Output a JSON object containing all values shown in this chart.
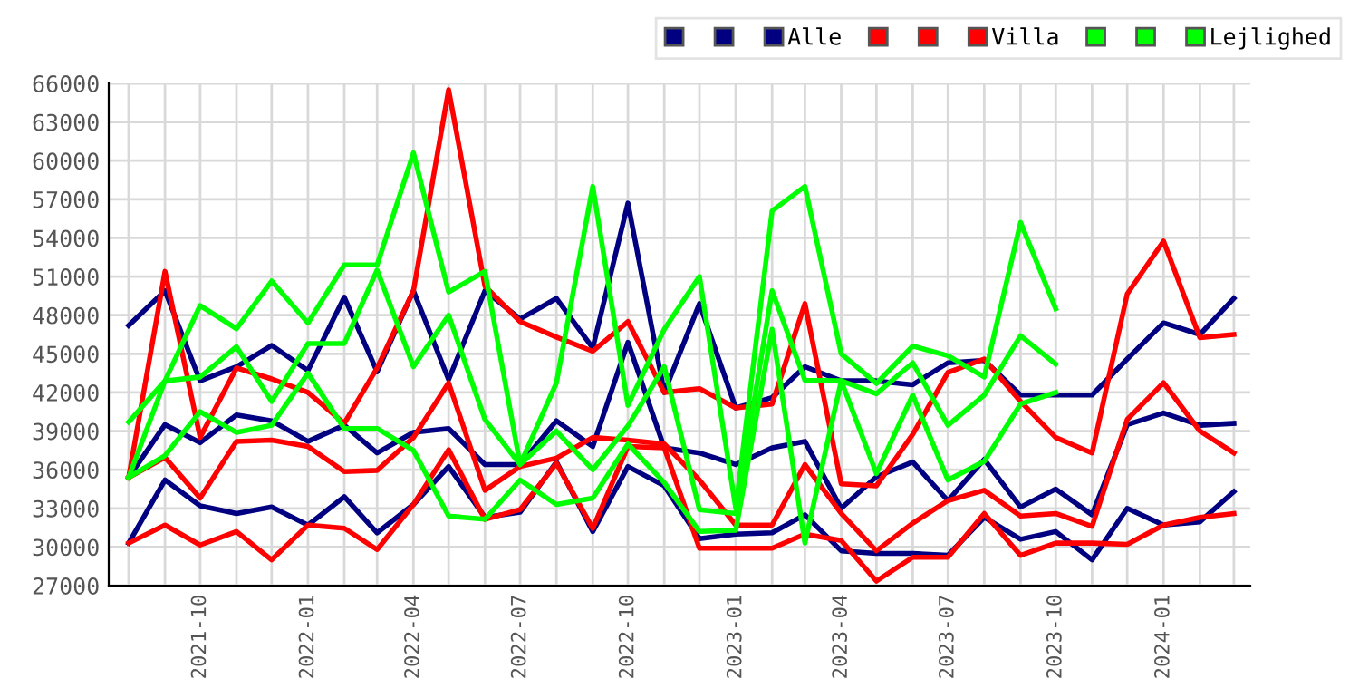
{
  "chart_data": {
    "type": "line",
    "x": [
      "2021-08",
      "2021-09",
      "2021-10",
      "2021-11",
      "2021-12",
      "2022-01",
      "2022-02",
      "2022-03",
      "2022-04",
      "2022-05",
      "2022-06",
      "2022-07",
      "2022-08",
      "2022-09",
      "2022-10",
      "2022-11",
      "2022-12",
      "2023-01",
      "2023-02",
      "2023-03",
      "2023-04",
      "2023-05",
      "2023-06",
      "2023-07",
      "2023-08",
      "2023-09",
      "2023-10",
      "2023-11",
      "2023-12",
      "2024-01",
      "2024-02",
      "2024-03"
    ],
    "series": [
      {
        "color": "#000080",
        "values": [
          30300,
          35200,
          33200,
          32600,
          33100,
          31700,
          33900,
          31100,
          33300,
          36250,
          32300,
          32700,
          36600,
          31200,
          36250,
          34750,
          30650,
          31000,
          31100,
          32500,
          29700,
          29500,
          29500,
          29350,
          32300,
          30600,
          31200,
          29000,
          33000,
          31700,
          31950,
          34300
        ]
      },
      {
        "color": "#000080",
        "values": [
          35400,
          39500,
          38100,
          40250,
          39800,
          38200,
          39450,
          37300,
          38900,
          39200,
          36400,
          36400,
          39800,
          37800,
          45900,
          37700,
          37300,
          36400,
          37700,
          38200,
          33000,
          35450,
          36600,
          33600,
          36800,
          33100,
          34500,
          32500,
          39500,
          40400,
          39450,
          39600
        ]
      },
      {
        "name": "Alle",
        "color": "#000080",
        "values": [
          47200,
          49900,
          42900,
          44000,
          45650,
          43700,
          49400,
          43600,
          49900,
          43000,
          49900,
          47700,
          49300,
          45450,
          56700,
          42000,
          48900,
          40800,
          41600,
          44000,
          42900,
          42900,
          42600,
          44300,
          44500,
          41800,
          41800,
          41800,
          44600,
          47400,
          46500,
          49300
        ]
      },
      {
        "color": "#ff0000",
        "values": [
          30300,
          31700,
          30150,
          31200,
          29000,
          31700,
          31450,
          29800,
          33300,
          37550,
          32150,
          32900,
          36500,
          31450,
          37800,
          37700,
          29900,
          29900,
          29900,
          31000,
          30500,
          27350,
          29200,
          29200,
          32600,
          29350,
          30300,
          30300,
          30200,
          31700,
          32300,
          32600
        ]
      },
      {
        "color": "#ff0000",
        "values": [
          35400,
          36950,
          33800,
          38200,
          38300,
          37800,
          35850,
          35950,
          38500,
          42750,
          34400,
          36250,
          36900,
          38500,
          38300,
          38000,
          35200,
          31700,
          31700,
          36400,
          32600,
          29700,
          31850,
          33600,
          34400,
          32400,
          32600,
          31600,
          39900,
          42750,
          39000,
          37300
        ]
      },
      {
        "name": "Villa",
        "color": "#ff0000",
        "values": [
          35400,
          51400,
          38500,
          43900,
          43050,
          42000,
          39600,
          43900,
          49900,
          65500,
          50250,
          47500,
          46300,
          45200,
          47500,
          42000,
          42300,
          40800,
          41100,
          48900,
          34900,
          34750,
          38750,
          43550,
          44600,
          41300,
          38500,
          37300,
          49650,
          53750,
          46250,
          46500
        ]
      },
      {
        "color": "#00ff00",
        "values": [
          35400,
          37100,
          40500,
          38900,
          39450,
          43500,
          39200,
          39200,
          37500,
          32400,
          32150,
          35200,
          33300,
          33800,
          38000,
          35000,
          31200,
          31300,
          46900,
          30300,
          42900,
          35700,
          41800,
          35200,
          36650,
          41100,
          42000,
          null,
          null,
          null,
          null,
          null
        ]
      },
      {
        "color": "#00ff00",
        "values": [
          35400,
          42900,
          43200,
          45550,
          41300,
          45800,
          45800,
          51500,
          44000,
          48000,
          39900,
          36400,
          39000,
          36000,
          39400,
          44000,
          32900,
          32600,
          49900,
          42950,
          42900,
          41900,
          44300,
          39450,
          41800,
          46400,
          44200,
          null,
          null,
          null,
          null,
          null
        ]
      },
      {
        "name": "Lejlighed",
        "color": "#00ff00",
        "values": [
          39700,
          42900,
          48750,
          46950,
          50650,
          47400,
          51900,
          51900,
          60600,
          49800,
          51400,
          36400,
          42750,
          58000,
          41000,
          46900,
          51000,
          33000,
          56100,
          58000,
          45000,
          42700,
          45600,
          44850,
          43200,
          55200,
          48500,
          null,
          null,
          null,
          null,
          null
        ]
      }
    ],
    "xlim": [
      "2021-07-15",
      "2024-03-15"
    ],
    "xticks": [
      {
        "value": "2021-08",
        "label": null
      },
      {
        "value": "2021-09",
        "label": null
      },
      {
        "value": "2021-10",
        "label": "2021-10"
      },
      {
        "value": "2021-11",
        "label": null
      },
      {
        "value": "2021-12",
        "label": null
      },
      {
        "value": "2022-01",
        "label": "2022-01"
      },
      {
        "value": "2022-02",
        "label": null
      },
      {
        "value": "2022-03",
        "label": null
      },
      {
        "value": "2022-04",
        "label": "2022-04"
      },
      {
        "value": "2022-05",
        "label": null
      },
      {
        "value": "2022-06",
        "label": null
      },
      {
        "value": "2022-07",
        "label": "2022-07"
      },
      {
        "value": "2022-08",
        "label": null
      },
      {
        "value": "2022-09",
        "label": null
      },
      {
        "value": "2022-10",
        "label": "2022-10"
      },
      {
        "value": "2022-11",
        "label": null
      },
      {
        "value": "2022-12",
        "label": null
      },
      {
        "value": "2023-01",
        "label": "2023-01"
      },
      {
        "value": "2023-02",
        "label": null
      },
      {
        "value": "2023-03",
        "label": null
      },
      {
        "value": "2023-04",
        "label": "2023-04"
      },
      {
        "value": "2023-05",
        "label": null
      },
      {
        "value": "2023-06",
        "label": null
      },
      {
        "value": "2023-07",
        "label": "2023-07"
      },
      {
        "value": "2023-08",
        "label": null
      },
      {
        "value": "2023-09",
        "label": null
      },
      {
        "value": "2023-10",
        "label": "2023-10"
      },
      {
        "value": "2023-11",
        "label": null
      },
      {
        "value": "2023-12",
        "label": null
      },
      {
        "value": "2024-01",
        "label": "2024-01"
      },
      {
        "value": "2024-02",
        "label": null
      },
      {
        "value": "2024-03",
        "label": null
      }
    ],
    "ylim": [
      27000,
      66000
    ],
    "yticks": [
      27000,
      30000,
      33000,
      36000,
      39000,
      42000,
      45000,
      48000,
      51000,
      54000,
      57000,
      60000,
      63000,
      66000
    ],
    "grid": true,
    "legend": "top right",
    "marker": "none",
    "line_style": "solid"
  }
}
